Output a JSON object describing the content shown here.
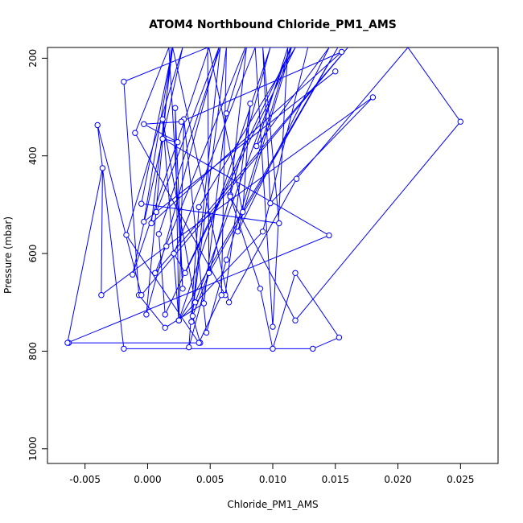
{
  "chart_data": {
    "type": "line",
    "title": "ATOM4 Northbound Chloride_PM1_AMS",
    "xlabel": "Chloride_PM1_AMS",
    "ylabel": "Pressure (mbar)",
    "xlim": [
      -0.008,
      0.028
    ],
    "ylim": [
      1030,
      178
    ],
    "y_inverted": true,
    "xticks": [
      "-0.005",
      "0.000",
      "0.005",
      "0.010",
      "0.015",
      "0.020",
      "0.025"
    ],
    "xtick_values": [
      -0.005,
      0.0,
      0.005,
      0.01,
      0.015,
      0.02,
      0.025
    ],
    "yticks": [
      "200",
      "400",
      "600",
      "800",
      "1000"
    ],
    "ytick_values": [
      200,
      400,
      600,
      800,
      1000
    ],
    "grid": false,
    "series_color": "#0000ff",
    "series": [
      {
        "points": [
          {
            "x": -0.0063,
            "y": 783
          },
          {
            "x": 0.0042,
            "y": 783
          },
          {
            "x": 0.0036,
            "y": 728
          },
          {
            "x": 0.0049,
            "y": 640
          },
          {
            "x": 0.0066,
            "y": 480
          },
          {
            "x": 0.0079,
            "y": 178
          },
          {
            "x": 0.0063,
            "y": 313
          },
          {
            "x": 0.0045,
            "y": 702
          },
          {
            "x": 0.0014,
            "y": 752
          },
          {
            "x": -0.0007,
            "y": 685
          },
          {
            "x": -0.0019,
            "y": 248
          },
          {
            "x": 0.0048,
            "y": 178
          },
          {
            "x": 0.0049,
            "y": 640
          },
          {
            "x": 0.0152,
            "y": 178
          },
          {
            "x": 0.0025,
            "y": 737
          },
          {
            "x": 0.0029,
            "y": 325
          },
          {
            "x": 0.0047,
            "y": 762
          },
          {
            "x": 0.0063,
            "y": 613
          },
          {
            "x": 0.0114,
            "y": 178
          },
          {
            "x": 0.0038,
            "y": 700
          },
          {
            "x": 0.0012,
            "y": 325
          },
          {
            "x": 0.0025,
            "y": 737
          },
          {
            "x": 0.0022,
            "y": 302
          },
          {
            "x": 0.0028,
            "y": 672
          },
          {
            "x": 0.0017,
            "y": 178
          },
          {
            "x": -0.001,
            "y": 353
          },
          {
            "x": 0.0062,
            "y": 685
          },
          {
            "x": 0.0082,
            "y": 293
          },
          {
            "x": 0.0076,
            "y": 515
          },
          {
            "x": 0.0049,
            "y": 178
          },
          {
            "x": -0.0012,
            "y": 643
          },
          {
            "x": 0.0028,
            "y": 178
          },
          {
            "x": -0.0017,
            "y": 562
          },
          {
            "x": 0.0041,
            "y": 783
          },
          {
            "x": 0.0059,
            "y": 685
          },
          {
            "x": 0.0063,
            "y": 178
          },
          {
            "x": 0.0035,
            "y": 740
          },
          {
            "x": 0.0058,
            "y": 178
          },
          {
            "x": 0.0009,
            "y": 560
          },
          {
            "x": 0.0014,
            "y": 725
          },
          {
            "x": 0.0115,
            "y": 178
          },
          {
            "x": 0.0072,
            "y": 555
          },
          {
            "x": 0.0145,
            "y": 178
          },
          {
            "x": 0.0087,
            "y": 380
          },
          {
            "x": 0.0112,
            "y": 178
          },
          {
            "x": 0.01,
            "y": 750
          },
          {
            "x": 0.0086,
            "y": 178
          },
          {
            "x": 0.0021,
            "y": 600
          },
          {
            "x": 0.003,
            "y": 640
          },
          {
            "x": 0.0118,
            "y": 178
          },
          {
            "x": 0.0041,
            "y": 505
          },
          {
            "x": 0.0033,
            "y": 792
          },
          {
            "x": 0.0098,
            "y": 178
          },
          {
            "x": 0.0025,
            "y": 737
          },
          {
            "x": 0.0092,
            "y": 555
          },
          {
            "x": 0.0128,
            "y": 178
          },
          {
            "x": 0.0078,
            "y": 178
          },
          {
            "x": 0.0006,
            "y": 640
          },
          {
            "x": 0.016,
            "y": 178
          },
          {
            "x": -0.0005,
            "y": 685
          },
          {
            "x": -0.004,
            "y": 337
          },
          {
            "x": -0.0019,
            "y": 795
          },
          {
            "x": 0.0132,
            "y": 795
          },
          {
            "x": 0.0153,
            "y": 772
          },
          {
            "x": 0.0118,
            "y": 640
          },
          {
            "x": 0.01,
            "y": 795
          },
          {
            "x": 0.009,
            "y": 672
          },
          {
            "x": 0.0066,
            "y": 483
          },
          {
            "x": 0.0118,
            "y": 737
          },
          {
            "x": 0.025,
            "y": 330
          },
          {
            "x": 0.0208,
            "y": 178
          },
          {
            "x": 0.0119,
            "y": 447
          },
          {
            "x": 0.0065,
            "y": 700
          },
          {
            "x": 0.002,
            "y": 178
          },
          {
            "x": -0.0005,
            "y": 498
          },
          {
            "x": 0.0105,
            "y": 538
          },
          {
            "x": 0.0092,
            "y": 178
          },
          {
            "x": 0.0098,
            "y": 497
          },
          {
            "x": 0.018,
            "y": 280
          },
          {
            "x": 0.0015,
            "y": 585
          },
          {
            "x": -0.0037,
            "y": 685
          },
          {
            "x": -0.0036,
            "y": 425
          },
          {
            "x": -0.0064,
            "y": 783
          },
          {
            "x": 0.0145,
            "y": 563
          },
          {
            "x": 0.0012,
            "y": 365
          },
          {
            "x": 0.0024,
            "y": 372
          },
          {
            "x": -0.0003,
            "y": 335
          },
          {
            "x": 0.0027,
            "y": 330
          },
          {
            "x": 0.0155,
            "y": 187
          },
          {
            "x": 0.0003,
            "y": 538
          },
          {
            "x": 0.002,
            "y": 178
          },
          {
            "x": -0.0003,
            "y": 535
          },
          {
            "x": 0.015,
            "y": 227
          },
          {
            "x": 0.0007,
            "y": 515
          },
          {
            "x": 0.0057,
            "y": 178
          },
          {
            "x": -0.0001,
            "y": 725
          },
          {
            "x": 0.0019,
            "y": 178
          }
        ]
      }
    ]
  }
}
